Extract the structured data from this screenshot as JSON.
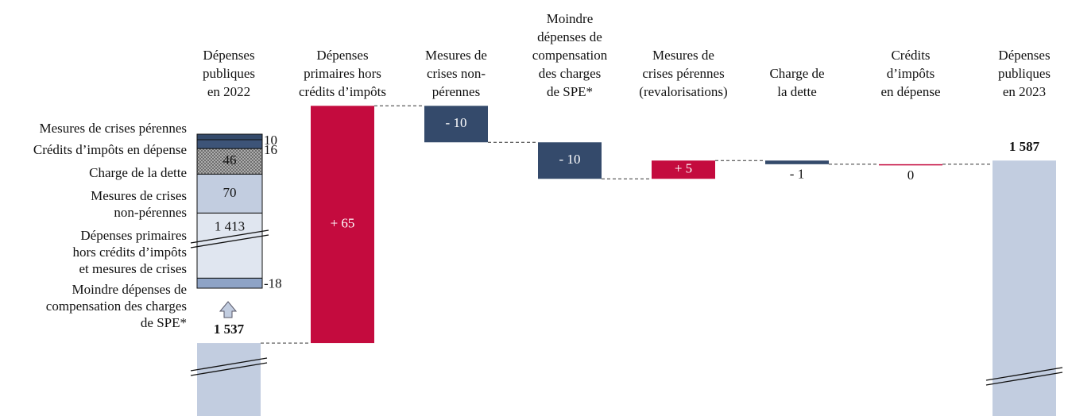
{
  "chart_data": {
    "type": "waterfall",
    "categories": [
      [
        "Dépenses",
        "publiques",
        "en 2022"
      ],
      [
        "Dépenses",
        "primaires hors",
        "crédits d’impôts"
      ],
      [
        "Mesures de",
        "crises non-",
        "pérennes"
      ],
      [
        "Moindre",
        "dépenses de",
        "compensation",
        "des charges",
        "de SPE*"
      ],
      [
        "Mesures de",
        "crises pérennes",
        "(revalorisations)"
      ],
      [
        "Charge de",
        "la dette"
      ],
      [
        "Crédits",
        "d’impôts",
        "en dépense"
      ],
      [
        "Dépenses",
        "publiques",
        "en 2023"
      ]
    ],
    "measures": [
      "total",
      "relative",
      "relative",
      "relative",
      "relative",
      "relative",
      "relative",
      "total"
    ],
    "values": [
      1537,
      65,
      -10,
      -10,
      5,
      -1,
      0,
      1587
    ],
    "value_labels": [
      "1 537",
      "+ 65",
      "- 10",
      "- 10",
      "+ 5",
      "- 1",
      "0",
      "1 587"
    ],
    "colors": {
      "total": "#c2cde0",
      "increase": "#c40b3e",
      "decrease": "#344a6b"
    },
    "ylim": [
      1517,
      1631
    ],
    "breakdown": {
      "segments": [
        {
          "label": [
            "Mesures de crises pérennes"
          ],
          "value": 10,
          "color": "#344a6b"
        },
        {
          "label": [
            "Crédits d’impôts en dépense"
          ],
          "value": 16,
          "color": "#3d5478"
        },
        {
          "label": [
            "Charge de la dette"
          ],
          "value": 46,
          "color": "hatch"
        },
        {
          "label": [
            "Mesures de crises",
            "non-pérennes"
          ],
          "value": 70,
          "color": "#c2cde0"
        },
        {
          "label": [
            "Dépenses primaires",
            "hors crédits d’impôts",
            "et mesures de crises"
          ],
          "value": 1413,
          "value_label": "1 413",
          "color": "#e0e6f0"
        },
        {
          "label": [
            "Moindre dépenses de",
            "compensation des charges",
            "de SPE*"
          ],
          "value": -18,
          "color": "#8ea3c6"
        }
      ]
    }
  }
}
